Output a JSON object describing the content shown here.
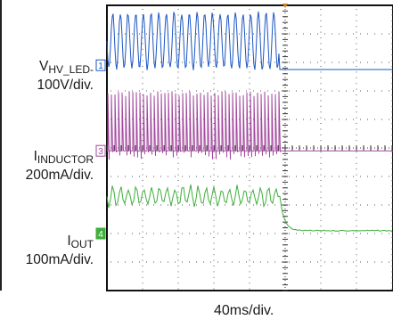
{
  "chart_data": {
    "type": "line",
    "instrument": "oscilloscope",
    "grid": true,
    "timebase_label": "40ms/div.",
    "time_divisions": 10,
    "trigger_division": 5,
    "channels": [
      {
        "marker": "1",
        "color": "#1a56c4",
        "name_main": "V",
        "name_sub": "HV_LED-",
        "scale": "100V/div.",
        "ground_division_from_top": 2.1,
        "waveform": [
          {
            "t_div": 0.0,
            "state": "switching",
            "low_div": -0.2,
            "high_div": 1.9
          },
          {
            "t_div": 4.85,
            "state": "off",
            "level_div": -0.15
          }
        ]
      },
      {
        "marker": "3",
        "color": "#a2479e",
        "name_main": "I",
        "name_sub": "INDUCTOR",
        "scale": "200mA/div.",
        "ground_division_from_top": 5.1,
        "waveform": [
          {
            "t_div": 0.0,
            "state": "switching",
            "low_div": 0.0,
            "high_div": 2.1
          },
          {
            "t_div": 4.85,
            "state": "off",
            "level_div": 0.0
          }
        ]
      },
      {
        "marker": "4",
        "color": "#3fae3a",
        "name_main": "I",
        "name_sub": "OUT",
        "scale": "100mA/div.",
        "ground_division_from_top": 8.0,
        "waveform": [
          {
            "t_div": 0.0,
            "state": "ripple",
            "mean_div": 1.3,
            "ripple_div": 0.35
          },
          {
            "t_div": 4.85,
            "state": "decay",
            "to_div": 0.1,
            "tau_div": 0.12
          }
        ]
      }
    ]
  }
}
